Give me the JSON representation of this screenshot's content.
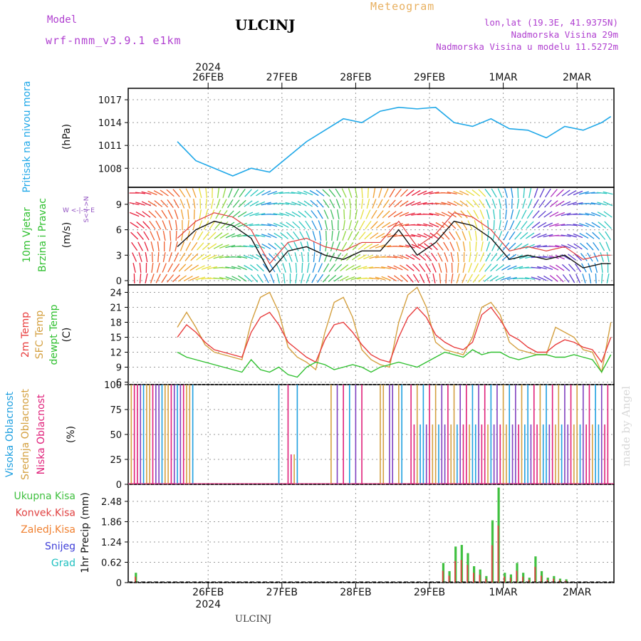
{
  "header": {
    "model_label": "Model",
    "model_name": "wrf-nmm_v3.9.1 e1km",
    "station": "ULCINJ",
    "title": "Meteogram",
    "lonlat": "lon,lat (19.3E, 41.9375N)",
    "elevation": "Nadmorska Visina 29m",
    "model_elevation": "Nadmorska Visina u modelu 11.5272m"
  },
  "footer": {
    "station": "ULCINJ",
    "credit": "made by Angel"
  },
  "axes": {
    "year": "2024",
    "days": [
      "26FEB",
      "27FEB",
      "28FEB",
      "29FEB",
      "1MAR",
      "2MAR"
    ]
  },
  "panels": {
    "pressure": {
      "label": "Pritisak na nivou mora",
      "unit": "(hPa)",
      "ticks": [
        "1008",
        "1011",
        "1014",
        "1017"
      ]
    },
    "wind": {
      "label1": "10m Vjetar",
      "label2": "Brzina i Pravac",
      "unit": "(m/s)",
      "ticks": [
        "0",
        "3",
        "6",
        "9"
      ],
      "compass": "W <-|-> E",
      "ns": "S<-|->N"
    },
    "temp": {
      "label1": "2m Temp",
      "label2": "SFC Temp",
      "label3": "dewpt Temp",
      "unit": "(C)",
      "ticks": [
        "6",
        "9",
        "12",
        "15",
        "18",
        "21",
        "24"
      ]
    },
    "cloud": {
      "label1": "Visoka Oblacnost",
      "label2": "Srednja Oblacnost",
      "label3": "Niska Oblacnost",
      "unit": "(%)",
      "ticks": [
        "0",
        "25",
        "50",
        "75",
        "100"
      ]
    },
    "precip": {
      "legend": [
        "Ukupna Kisa",
        "Konvek.Kisa",
        "Zaledj.Kisa",
        "Snijeg",
        "Grad"
      ],
      "unit": "1hr Precip (mm)",
      "ticks": [
        "0",
        "0.62",
        "1.24",
        "1.86",
        "2.48"
      ]
    }
  },
  "colors": {
    "pressure": "#20a8e8",
    "temp2m": "#e83c3c",
    "sfc": "#d4a040",
    "dew": "#30c030",
    "high_cloud": "#20a0e0",
    "mid_cloud": "#d4a040",
    "low_cloud": "#e0207a",
    "total_rain": "#40c040",
    "conv_rain": "#e04040",
    "frz_rain": "#f08030",
    "snow": "#4040d8",
    "hail": "#20c0c0"
  },
  "chart_data": [
    {
      "type": "line",
      "title": "Pritisak na nivou mora",
      "ylabel": "(hPa)",
      "ylim": [
        1005.5,
        1018.5
      ],
      "x_hours": [
        0,
        6,
        12,
        18,
        24,
        30,
        36,
        42,
        48,
        54,
        60,
        66,
        72,
        78,
        84,
        90,
        96,
        102,
        108,
        114,
        120,
        126,
        132,
        138,
        141
      ],
      "values": [
        1011.5,
        1009,
        1008,
        1007,
        1008,
        1007.5,
        1009.5,
        1011.5,
        1013,
        1014.5,
        1014,
        1015.5,
        1016,
        1015.8,
        1016,
        1014,
        1013.5,
        1014.5,
        1013.2,
        1013,
        1012,
        1013.5,
        1013,
        1014,
        1014.8
      ]
    },
    {
      "type": "line",
      "title": "10m Vjetar Brzina i Pravac",
      "ylabel": "(m/s)",
      "ylim": [
        -0.5,
        11
      ],
      "x_hours": [
        0,
        6,
        12,
        18,
        24,
        30,
        36,
        42,
        48,
        54,
        60,
        66,
        72,
        78,
        84,
        90,
        96,
        102,
        108,
        114,
        120,
        126,
        132,
        138,
        141
      ],
      "values": [
        4,
        6,
        7,
        6.5,
        5,
        1,
        3.5,
        4,
        3,
        2.5,
        3.5,
        3.5,
        6,
        3,
        4.5,
        7,
        6.5,
        5,
        2.5,
        3,
        2.5,
        3,
        1.5,
        2,
        2
      ]
    },
    {
      "type": "line",
      "title": "2m Temp / SFC Temp / dewpt Temp",
      "ylabel": "(C)",
      "ylim": [
        5.5,
        25.5
      ],
      "x_hours": [
        0,
        3,
        6,
        9,
        12,
        15,
        18,
        21,
        24,
        27,
        30,
        33,
        36,
        39,
        42,
        45,
        48,
        51,
        54,
        57,
        60,
        63,
        66,
        69,
        72,
        75,
        78,
        81,
        84,
        87,
        90,
        93,
        96,
        99,
        102,
        105,
        108,
        111,
        114,
        117,
        120,
        123,
        126,
        129,
        132,
        135,
        138,
        141
      ],
      "series": [
        {
          "name": "2m Temp",
          "values": [
            15,
            17.5,
            16,
            14,
            12.5,
            12,
            11.5,
            11,
            16,
            19,
            20,
            17.5,
            14,
            12.5,
            11,
            10,
            14.5,
            17.5,
            18,
            16,
            13.5,
            11.5,
            10.5,
            10,
            15,
            19,
            21,
            19,
            15.5,
            14,
            13,
            12.5,
            14,
            19.5,
            21,
            18.5,
            15.5,
            14.5,
            13,
            12,
            12,
            13.5,
            14.5,
            14,
            13,
            12.5,
            10,
            15
          ]
        },
        {
          "name": "SFC Temp",
          "values": [
            17,
            20,
            17,
            13.5,
            12,
            11.5,
            11,
            10.5,
            18,
            23,
            24,
            20,
            13,
            11,
            10,
            8.5,
            16,
            22,
            23,
            19,
            12.5,
            10.5,
            9.5,
            9,
            18,
            23.5,
            25,
            21,
            14,
            12.5,
            12,
            11.5,
            15,
            21,
            22,
            19.5,
            14,
            12.5,
            12,
            11.5,
            11.5,
            17,
            16,
            15,
            12.5,
            12,
            8,
            18
          ]
        },
        {
          "name": "dewpt Temp",
          "values": [
            12,
            11,
            10.5,
            10,
            9.5,
            9,
            8.5,
            8,
            10.5,
            8.5,
            8,
            9,
            7.5,
            7,
            9,
            10,
            9.5,
            8.5,
            9,
            9.5,
            9,
            8,
            9,
            9.5,
            10,
            9.5,
            9,
            10,
            11,
            12,
            11.5,
            11,
            12.5,
            11.5,
            12,
            12,
            11,
            10.5,
            11,
            11.5,
            11.5,
            11,
            11,
            11.5,
            11,
            10.5,
            8,
            11.5
          ]
        }
      ]
    },
    {
      "type": "bar",
      "title": "Oblacnost",
      "ylabel": "(%)",
      "ylim": [
        0,
        100
      ]
    },
    {
      "type": "bar",
      "title": "1hr Precip",
      "ylabel": "(mm)",
      "ylim": [
        0,
        3.0
      ],
      "x_hours": [
        1,
        101,
        103,
        105,
        107,
        109,
        111,
        113,
        115,
        117,
        119,
        121,
        123,
        125,
        127,
        129,
        131,
        133,
        135,
        137,
        139,
        141
      ],
      "values": [
        0.3,
        0.6,
        0.35,
        1.1,
        1.15,
        0.9,
        0.5,
        0.4,
        0.2,
        1.9,
        2.9,
        0.3,
        0.25,
        0.6,
        0.3,
        0.15,
        0.8,
        0.35,
        0.15,
        0.2,
        0.12,
        0.1
      ]
    }
  ]
}
